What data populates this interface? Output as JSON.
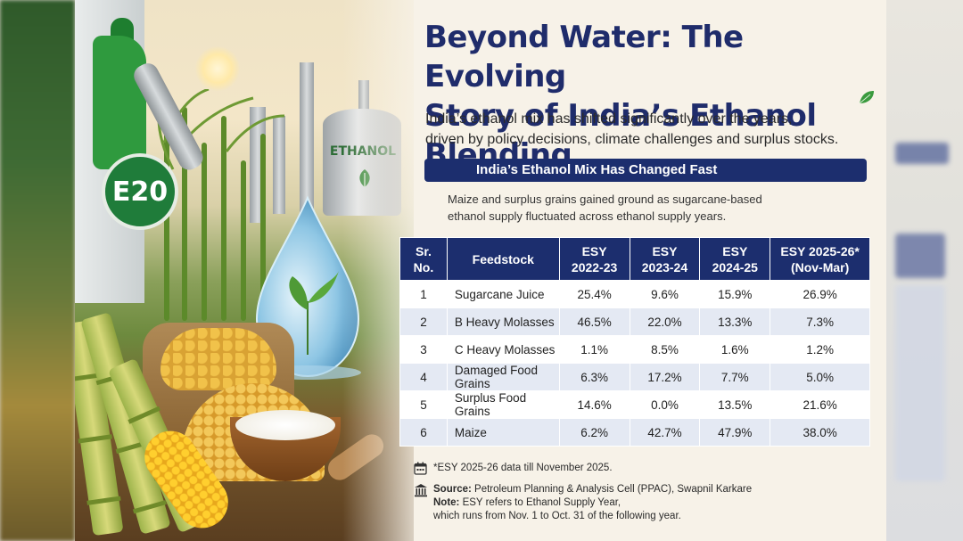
{
  "badge": {
    "label": "E20"
  },
  "tank": {
    "label": "ETHANOL"
  },
  "title": {
    "line1": "Beyond Water: The Evolving",
    "line2": "Story of India’s Ethanol Blending"
  },
  "intro": {
    "line1": "India’s ethanol mix has shifted significantly over the years,",
    "line2": "driven by policy decisions, climate challenges and surplus stocks."
  },
  "banner": {
    "text": "India’s Ethanol Mix Has Changed Fast"
  },
  "subtitle": {
    "line1": "Maize and surplus grains gained ground as sugarcane-based",
    "line2": "ethanol supply fluctuated across ethanol supply years."
  },
  "table": {
    "headers": [
      {
        "l1": "Sr.",
        "l2": "No."
      },
      {
        "l1": "Feedstock",
        "l2": ""
      },
      {
        "l1": "ESY",
        "l2": "2022-23"
      },
      {
        "l1": "ESY",
        "l2": "2023-24"
      },
      {
        "l1": "ESY",
        "l2": "2024-25"
      },
      {
        "l1": "ESY 2025-26*",
        "l2": "(Nov-Mar)"
      }
    ],
    "rows": [
      [
        "1",
        "Sugarcane Juice",
        "25.4%",
        "9.6%",
        "15.9%",
        "26.9%"
      ],
      [
        "2",
        "B Heavy Molasses",
        "46.5%",
        "22.0%",
        "13.3%",
        "7.3%"
      ],
      [
        "3",
        "C Heavy Molasses",
        "1.1%",
        "8.5%",
        "1.6%",
        "1.2%"
      ],
      [
        "4",
        "Damaged Food Grains",
        "6.3%",
        "17.2%",
        "7.7%",
        "5.0%"
      ],
      [
        "5",
        "Surplus Food Grains",
        "14.6%",
        "0.0%",
        "13.5%",
        "21.6%"
      ],
      [
        "6",
        "Maize",
        "6.2%",
        "42.7%",
        "47.9%",
        "38.0%"
      ]
    ]
  },
  "footnotes": {
    "esy_note": "*ESY 2025-26 data till November 2025.",
    "source_label": "Source:",
    "source_text": " Petroleum Planning & Analysis Cell (PPAC), Swapnil Karkare",
    "note_label": "Note:",
    "note_text": " ESY refers to Ethanol Supply Year,",
    "note_line2": "which runs from Nov. 1 to Oct. 31 of the following year."
  },
  "icons": [
    "calendar-icon",
    "institution-icon",
    "leaf-icon"
  ],
  "colors": {
    "navy": "#1c2e6e",
    "title": "#1f2c6b",
    "green": "#2e8b3a",
    "row_alt": "#e4e9f3"
  }
}
